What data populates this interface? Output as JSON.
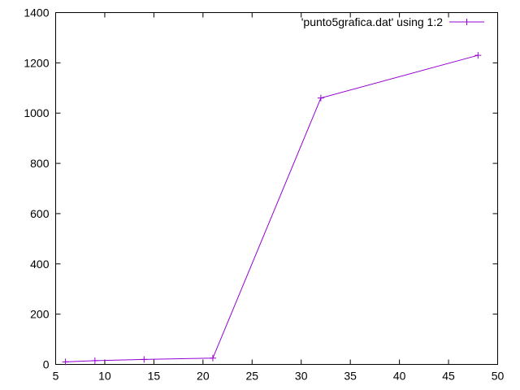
{
  "chart_data": {
    "type": "line",
    "title": "",
    "xlabel": "",
    "ylabel": "",
    "xlim": [
      5,
      50
    ],
    "ylim": [
      0,
      1400
    ],
    "x_ticks": [
      5,
      10,
      15,
      20,
      25,
      30,
      35,
      40,
      45,
      50
    ],
    "y_ticks": [
      0,
      200,
      400,
      600,
      800,
      1000,
      1200,
      1400
    ],
    "grid": false,
    "legend_position": "top-right",
    "series": [
      {
        "name": "'punto5grafica.dat' using 1:2",
        "color": "#9400d3",
        "marker": "plus",
        "x": [
          6,
          9,
          14,
          21,
          32,
          48
        ],
        "y": [
          10,
          15,
          20,
          25,
          1060,
          1230
        ]
      }
    ]
  }
}
